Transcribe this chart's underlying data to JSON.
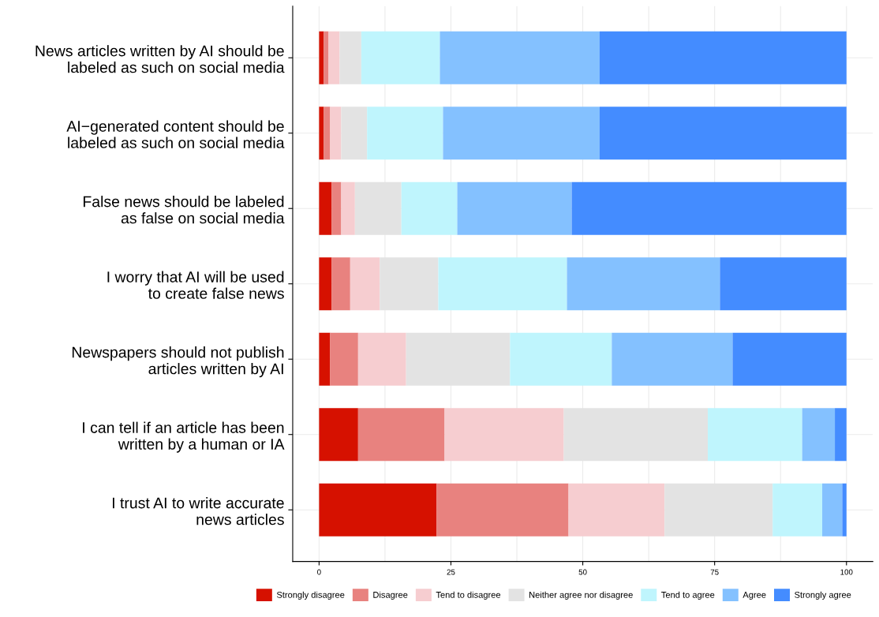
{
  "chart_data": {
    "type": "bar",
    "orientation": "horizontal",
    "stacked": true,
    "categories": [
      "News articles written by AI should be\nlabeled as such on social media",
      "AI−generated content should be\nlabeled as such on social media",
      "False news should be labeled\nas false on social media",
      "I worry that AI will be used\nto create false news",
      "Newspapers should not publish\narticles written by AI",
      "I can tell if an article has been\nwritten by a human or IA",
      "I trust AI to write accurate\nnews articles"
    ],
    "series": [
      {
        "name": "Strongly disagree",
        "color": "#d61100",
        "values": [
          0.9,
          0.9,
          2.4,
          2.4,
          2.1,
          7.4,
          22.3
        ]
      },
      {
        "name": "Disagree",
        "color": "#e8827f",
        "values": [
          0.9,
          1.2,
          1.8,
          3.5,
          5.3,
          16.4,
          25.0
        ]
      },
      {
        "name": "Tend to disagree",
        "color": "#f6cdd0",
        "values": [
          2.1,
          2.1,
          2.6,
          5.6,
          9.1,
          22.6,
          18.2
        ]
      },
      {
        "name": "Neither agree nor disagree",
        "color": "#e3e3e3",
        "values": [
          4.1,
          4.9,
          8.8,
          11.1,
          19.7,
          27.3,
          20.5
        ]
      },
      {
        "name": "Tend to agree",
        "color": "#bff5fd",
        "values": [
          14.9,
          14.4,
          10.6,
          24.4,
          19.3,
          17.9,
          9.4
        ]
      },
      {
        "name": "Agree",
        "color": "#84c1ff",
        "values": [
          30.3,
          29.7,
          21.7,
          29.0,
          22.9,
          6.2,
          3.8
        ]
      },
      {
        "name": "Strongly agree",
        "color": "#448cff",
        "values": [
          46.8,
          46.8,
          52.1,
          24.0,
          21.6,
          2.2,
          0.8
        ]
      }
    ],
    "xlim": [
      -5,
      105
    ],
    "xticks": [
      0,
      25,
      50,
      75,
      100
    ],
    "grid": true,
    "legend": "bottom"
  }
}
